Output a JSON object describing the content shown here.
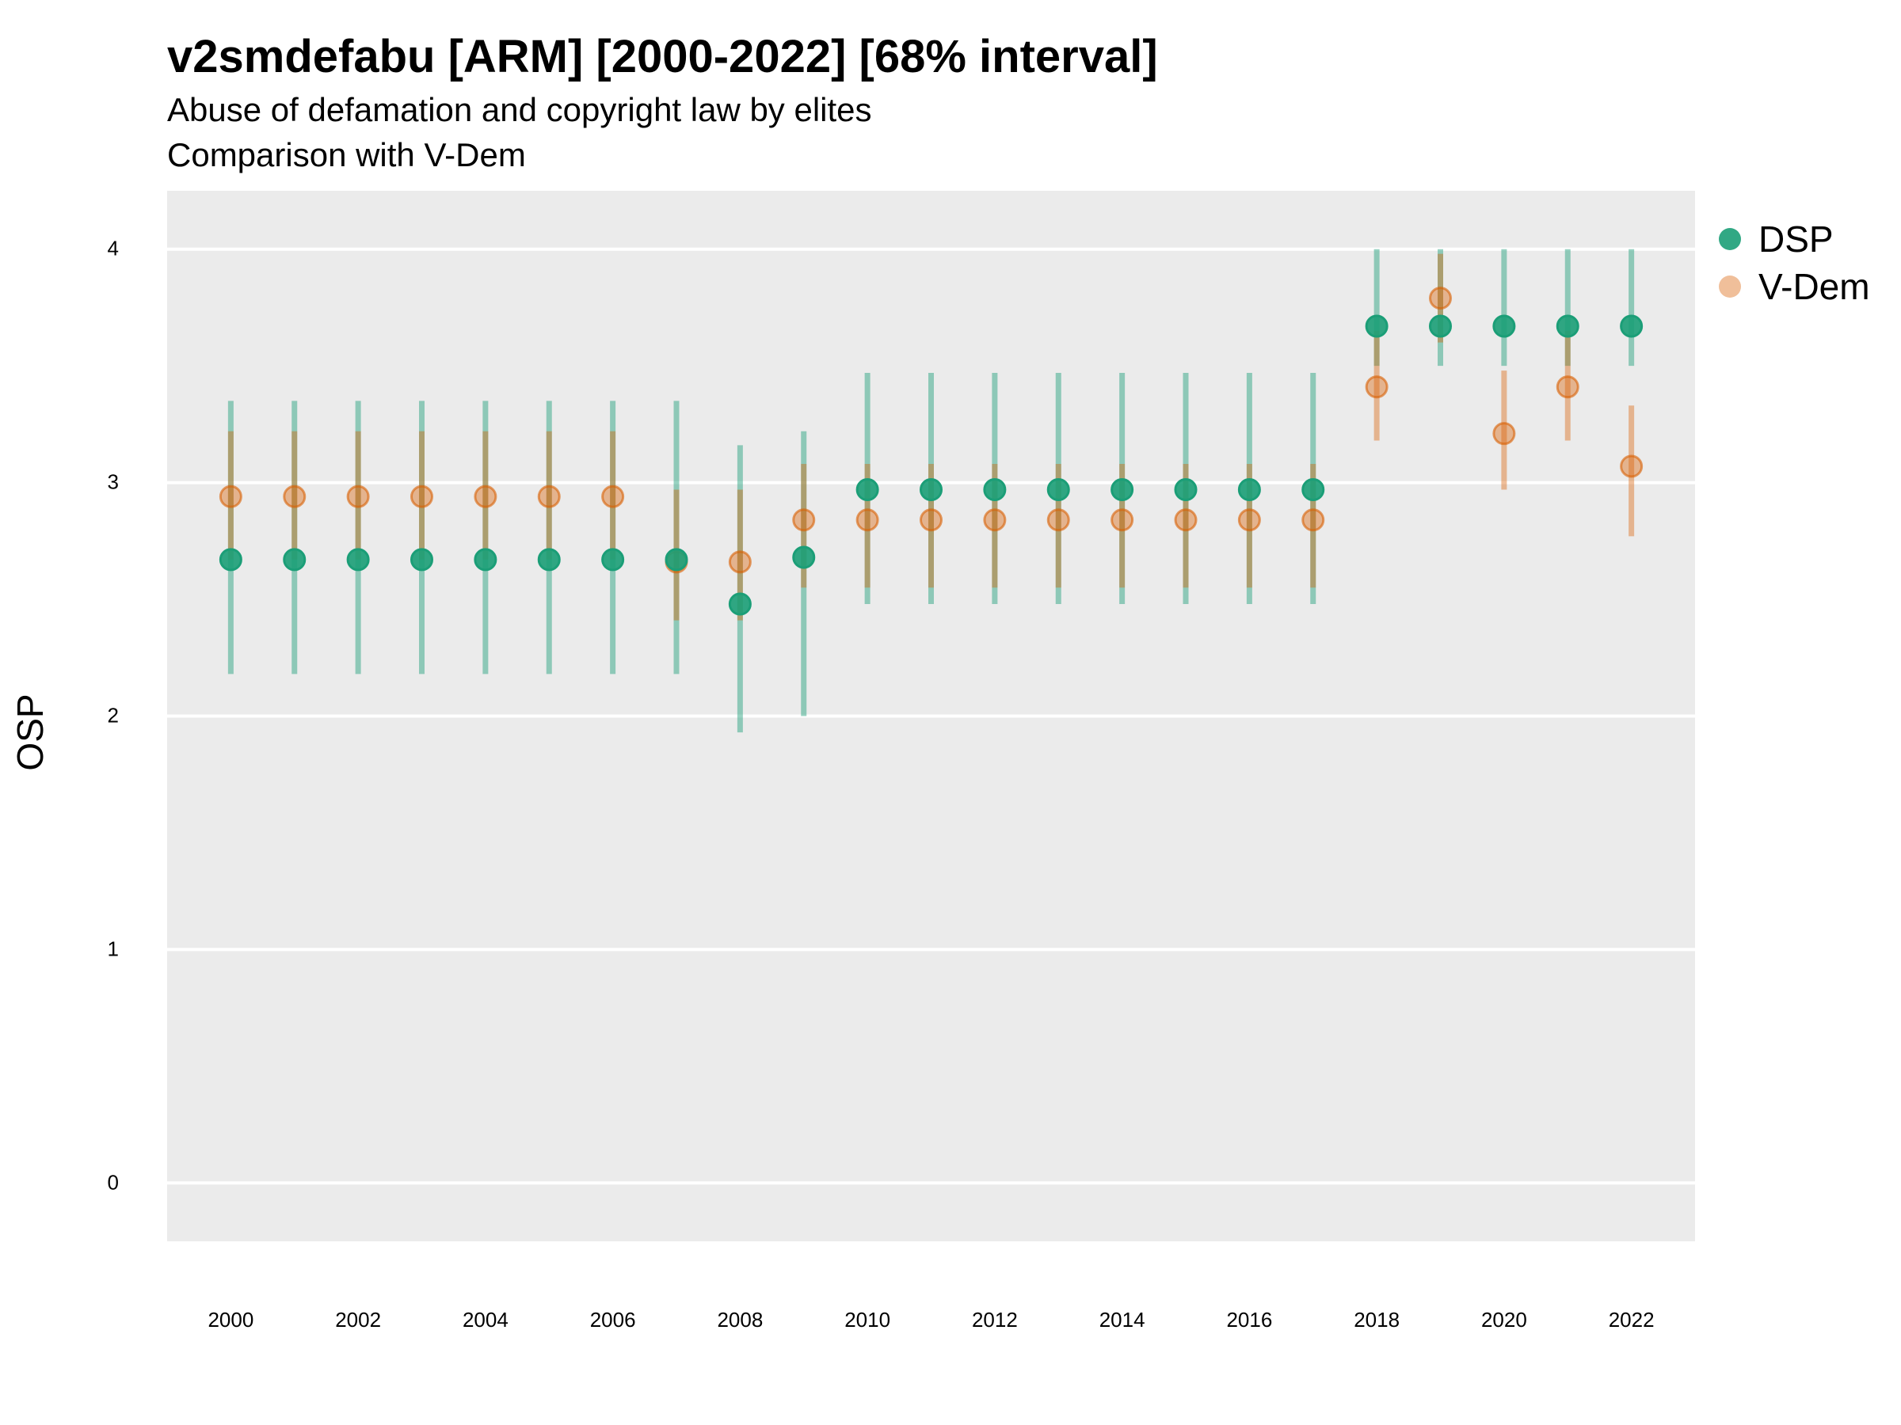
{
  "title": "v2smdefabu [ARM] [2000-2022] [68% interval]",
  "subtitle_line1": "Abuse of defamation and copyright law by elites",
  "subtitle_line2": "Comparison with V-Dem",
  "colors": {
    "dsp": "#1b9e77",
    "vdem": "#d95f02",
    "panel": "#ebebeb",
    "grid": "#ffffff"
  },
  "chart_data": {
    "type": "scatter",
    "title": "v2smdefabu [ARM] [2000-2022] [68% interval]",
    "subtitle": "Abuse of defamation and copyright law by elites / Comparison with V-Dem",
    "xlabel": "",
    "ylabel": "OSP",
    "ylim": [
      -0.25,
      4.25
    ],
    "xlim": [
      1999,
      2023
    ],
    "yticks": [
      0,
      1,
      2,
      3,
      4
    ],
    "xticks": [
      2000,
      2002,
      2004,
      2006,
      2008,
      2010,
      2012,
      2014,
      2016,
      2018,
      2020,
      2022
    ],
    "grid": true,
    "legend_position": "right",
    "series": [
      {
        "name": "DSP",
        "x": [
          2000,
          2001,
          2002,
          2003,
          2004,
          2005,
          2006,
          2007,
          2008,
          2009,
          2010,
          2011,
          2012,
          2013,
          2014,
          2015,
          2016,
          2017,
          2018,
          2019,
          2020,
          2021,
          2022
        ],
        "y": [
          2.67,
          2.67,
          2.67,
          2.67,
          2.67,
          2.67,
          2.67,
          2.67,
          2.48,
          2.68,
          2.97,
          2.97,
          2.97,
          2.97,
          2.97,
          2.97,
          2.97,
          2.97,
          3.67,
          3.67,
          3.67,
          3.67,
          3.67
        ],
        "low": [
          2.18,
          2.18,
          2.18,
          2.18,
          2.18,
          2.18,
          2.18,
          2.18,
          1.93,
          2.0,
          2.48,
          2.48,
          2.48,
          2.48,
          2.48,
          2.48,
          2.48,
          2.48,
          3.5,
          3.5,
          3.5,
          3.5,
          3.5
        ],
        "high": [
          3.35,
          3.35,
          3.35,
          3.35,
          3.35,
          3.35,
          3.35,
          3.35,
          3.16,
          3.22,
          3.47,
          3.47,
          3.47,
          3.47,
          3.47,
          3.47,
          3.47,
          3.47,
          4.0,
          4.0,
          4.0,
          4.0,
          4.0
        ]
      },
      {
        "name": "V-Dem",
        "x": [
          2000,
          2001,
          2002,
          2003,
          2004,
          2005,
          2006,
          2007,
          2008,
          2009,
          2010,
          2011,
          2012,
          2013,
          2014,
          2015,
          2016,
          2017,
          2018,
          2019,
          2020,
          2021,
          2022
        ],
        "y": [
          2.94,
          2.94,
          2.94,
          2.94,
          2.94,
          2.94,
          2.94,
          2.66,
          2.66,
          2.84,
          2.84,
          2.84,
          2.84,
          2.84,
          2.84,
          2.84,
          2.84,
          2.84,
          3.41,
          3.79,
          3.21,
          3.41,
          3.07
        ],
        "low": [
          2.67,
          2.67,
          2.67,
          2.67,
          2.67,
          2.67,
          2.67,
          2.41,
          2.41,
          2.55,
          2.55,
          2.55,
          2.55,
          2.55,
          2.55,
          2.55,
          2.55,
          2.55,
          3.18,
          3.6,
          2.97,
          3.18,
          2.77
        ],
        "high": [
          3.22,
          3.22,
          3.22,
          3.22,
          3.22,
          3.22,
          3.22,
          2.97,
          2.97,
          3.08,
          3.08,
          3.08,
          3.08,
          3.08,
          3.08,
          3.08,
          3.08,
          3.08,
          3.65,
          3.98,
          3.48,
          3.65,
          3.33
        ]
      }
    ]
  }
}
